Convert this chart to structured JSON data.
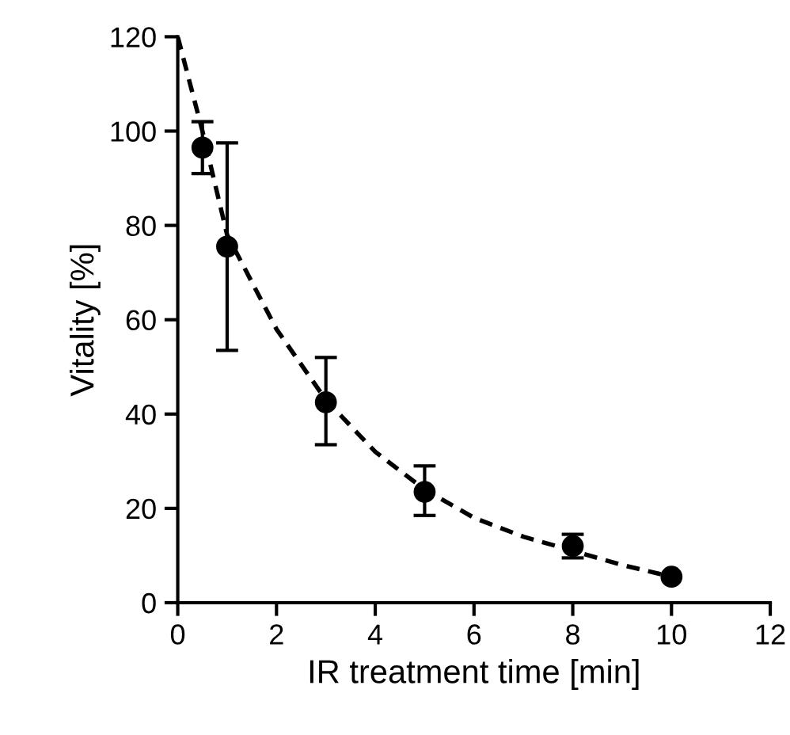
{
  "chart_data": {
    "type": "scatter",
    "xlabel": "IR treatment time [min]",
    "ylabel": "Vitality [%]",
    "xlim": [
      0,
      12
    ],
    "xticks": [
      0,
      2,
      4,
      6,
      8,
      10,
      12
    ],
    "ylim": [
      0,
      120
    ],
    "yticks": [
      0,
      20,
      40,
      60,
      80,
      100,
      120
    ],
    "grid": false,
    "legend": false,
    "series": [
      {
        "type": "line",
        "color": "#000000",
        "line_style": "dashed",
        "marker": "none",
        "x": [
          0,
          0.25,
          0.5,
          1,
          1.5,
          2,
          3,
          4,
          5,
          6,
          7,
          8,
          9,
          10
        ],
        "values": [
          120,
          110,
          100,
          78,
          68,
          58,
          43,
          32,
          24,
          18,
          14,
          11,
          8,
          5.5
        ]
      },
      {
        "color": "#000000",
        "marker": "circle",
        "x": [
          0.5,
          1,
          3,
          5,
          8,
          10
        ],
        "values": [
          96.5,
          75.5,
          42.5,
          23.5,
          12,
          5.5
        ],
        "errors": [
          [
            91,
            102
          ],
          [
            53.5,
            97.5
          ],
          [
            33.5,
            52
          ],
          [
            18.5,
            29
          ],
          [
            9.5,
            14.5
          ],
          null
        ]
      }
    ]
  }
}
